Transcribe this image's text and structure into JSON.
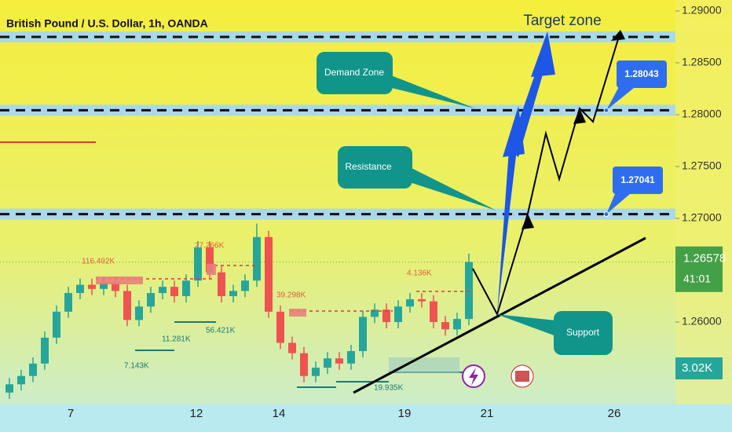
{
  "chart_data": {
    "type": "candlestick",
    "title": "British Pound / U.S. Dollar, 1h, OANDA",
    "ylim": [
      1.25205,
      1.29106
    ],
    "yticks": [
      {
        "value": 1.29,
        "label": "1.29000"
      },
      {
        "value": 1.285,
        "label": "1.28500"
      },
      {
        "value": 1.28,
        "label": "1.28000"
      },
      {
        "value": 1.275,
        "label": "1.27500"
      },
      {
        "value": 1.27,
        "label": "1.27000"
      },
      {
        "value": 1.26,
        "label": "1.26000"
      }
    ],
    "x_labels": [
      "7",
      "12",
      "14",
      "19",
      "21",
      "26"
    ],
    "up_color": "#26a69a",
    "down_color": "#ef5350",
    "open": [
      1.2532,
      1.254,
      1.2548,
      1.256,
      1.2585,
      1.261,
      1.2628,
      1.2636,
      1.2632,
      1.2638,
      1.263,
      1.2602,
      1.2615,
      1.2628,
      1.2634,
      1.2625,
      1.264,
      1.2672,
      1.2648,
      1.2625,
      1.263,
      1.264,
      1.2682,
      1.261,
      1.258,
      1.257,
      1.2548,
      1.2556,
      1.2565,
      1.256,
      1.2572,
      1.2605,
      1.2612,
      1.26,
      1.2615,
      1.2622,
      1.262,
      1.26,
      1.2593,
      1.2603
    ],
    "high": [
      1.2546,
      1.2554,
      1.2566,
      1.2591,
      1.2616,
      1.2634,
      1.2642,
      1.2642,
      1.2644,
      1.2644,
      1.2636,
      1.2621,
      1.2634,
      1.264,
      1.264,
      1.2646,
      1.2678,
      1.2678,
      1.2654,
      1.2636,
      1.2646,
      1.2695,
      1.2688,
      1.2616,
      1.2586,
      1.2576,
      1.2562,
      1.2571,
      1.2571,
      1.2578,
      1.2611,
      1.2618,
      1.2618,
      1.2621,
      1.2628,
      1.2628,
      1.2626,
      1.2606,
      1.2609,
      1.2666
    ],
    "low": [
      1.2526,
      1.2534,
      1.2542,
      1.2554,
      1.2579,
      1.2604,
      1.2622,
      1.2626,
      1.2626,
      1.2624,
      1.2596,
      1.2596,
      1.2609,
      1.2622,
      1.2619,
      1.2619,
      1.2634,
      1.2642,
      1.2619,
      1.2619,
      1.2624,
      1.2634,
      1.2604,
      1.2574,
      1.2564,
      1.2542,
      1.2542,
      1.255,
      1.2554,
      1.2554,
      1.2566,
      1.2599,
      1.2594,
      1.2594,
      1.2609,
      1.2614,
      1.2594,
      1.2587,
      1.2587,
      1.2597
    ],
    "close": [
      1.254,
      1.2548,
      1.256,
      1.2585,
      1.261,
      1.2628,
      1.2636,
      1.2632,
      1.2638,
      1.263,
      1.2602,
      1.2615,
      1.2628,
      1.2634,
      1.2625,
      1.264,
      1.2672,
      1.2648,
      1.2625,
      1.263,
      1.264,
      1.2682,
      1.261,
      1.258,
      1.257,
      1.2548,
      1.2556,
      1.2565,
      1.256,
      1.2572,
      1.2605,
      1.2612,
      1.26,
      1.2615,
      1.2622,
      1.262,
      1.26,
      1.2593,
      1.2603,
      1.2658
    ],
    "levels": [
      {
        "value": 1.28043,
        "label": "1.28043"
      },
      {
        "value": 1.27041,
        "label": "1.27041"
      }
    ],
    "current_price": {
      "value": 1.26578,
      "label": "1.26578"
    },
    "countdown": "41:01",
    "volume_label": "3.02K",
    "annotations": {
      "target": "Target zone",
      "demand": "Demand Zone",
      "resistance": "Resistance",
      "support": "Support"
    },
    "volume_notes": [
      "116.492K",
      "27.266K",
      "39.298K",
      "4.136K",
      "11.281K",
      "56.421K",
      "7.143K",
      "19.935K"
    ]
  }
}
